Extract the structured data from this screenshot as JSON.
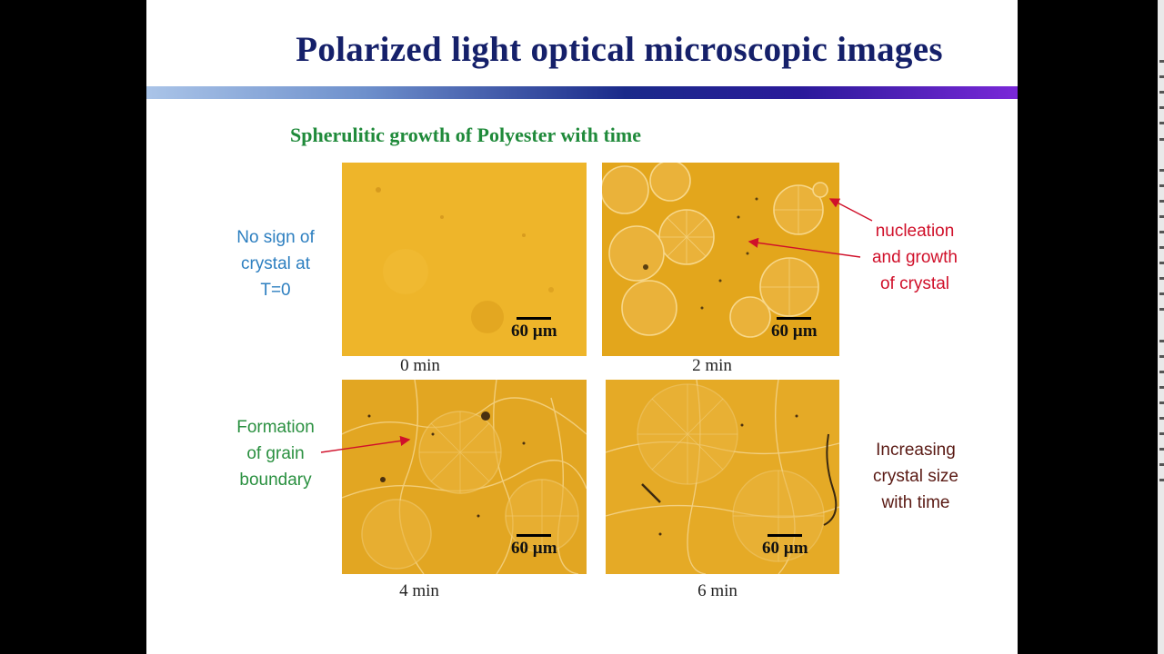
{
  "slide": {
    "title": "Polarized light optical microscopic images",
    "subtitle": "Spherulitic growth of Polyester with time"
  },
  "images": [
    {
      "caption": "0 min",
      "scale_label": "60 µm"
    },
    {
      "caption": "2 min",
      "scale_label": "60 µm"
    },
    {
      "caption": "4 min",
      "scale_label": "60 µm"
    },
    {
      "caption": "6 min",
      "scale_label": "60 µm"
    }
  ],
  "annotations": {
    "no_sign": [
      "No sign of",
      "crystal at",
      "T=0"
    ],
    "nucleation": [
      "nucleation",
      "and  growth",
      "of crystal"
    ],
    "grain_boundary": [
      "Formation",
      "of grain",
      "boundary"
    ],
    "increasing": [
      "Increasing",
      "crystal size",
      "with time"
    ]
  },
  "colors": {
    "title": "#15206a",
    "subtitle": "#1f8a3a",
    "annotation_blue": "#2d7fc0",
    "annotation_red": "#d0102a",
    "annotation_green": "#2a9040",
    "annotation_maroon": "#5a1a14",
    "micrograph": "#e8ac1c"
  }
}
